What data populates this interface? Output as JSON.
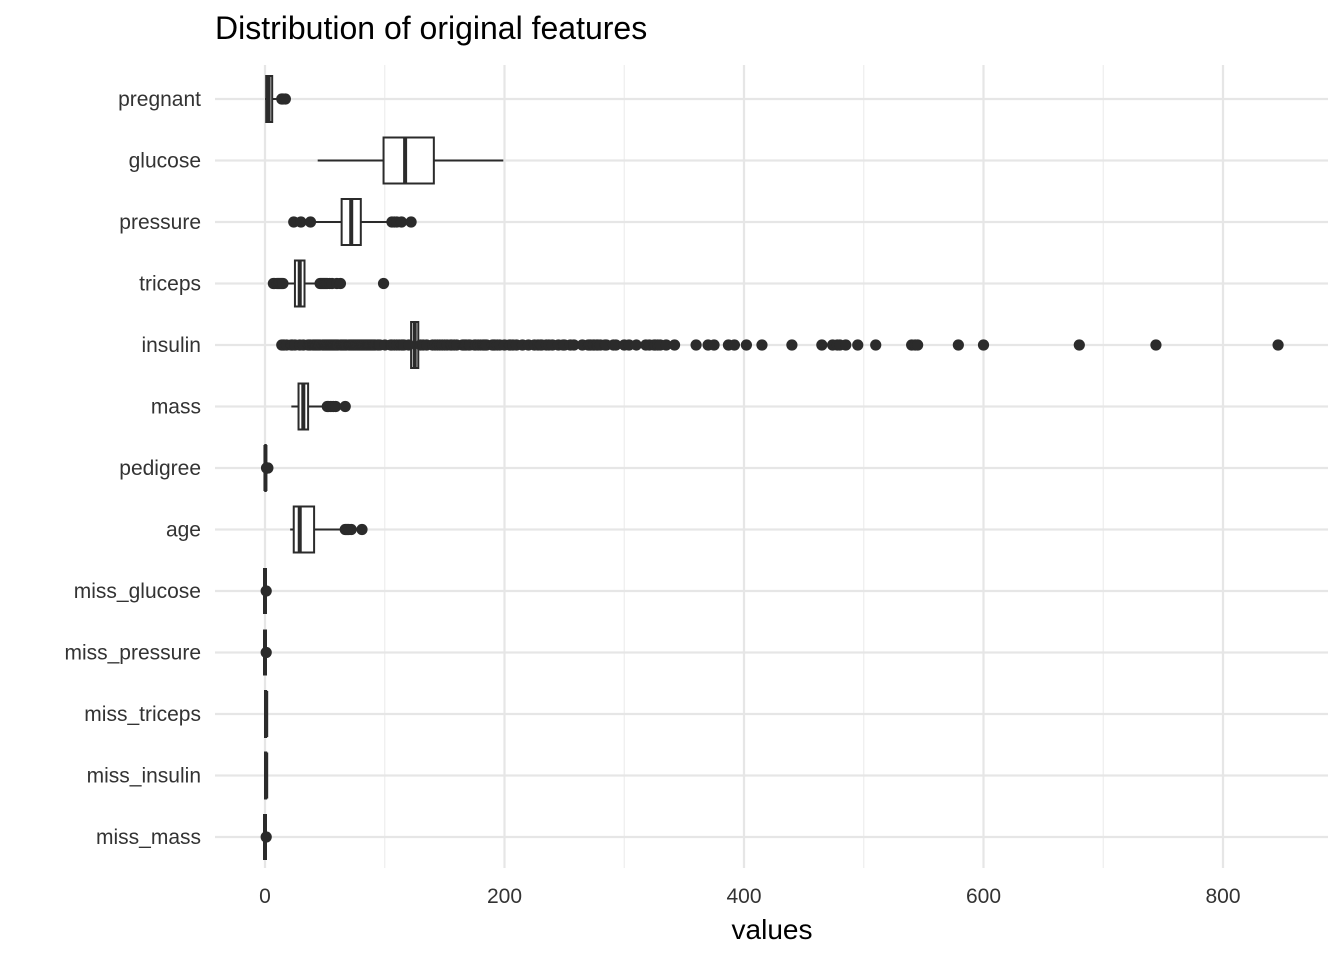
{
  "chart_data": {
    "type": "boxplot",
    "orientation": "horizontal",
    "title": "Distribution of original features",
    "xlabel": "values",
    "ylabel": "",
    "xlim": [
      -35,
      865
    ],
    "x_ticks": [
      0,
      200,
      400,
      600,
      800
    ],
    "x_minor_ticks": [
      100,
      300,
      500,
      700
    ],
    "grid": true,
    "legend": "none",
    "color": "#2b2b2b",
    "categories": [
      "pregnant",
      "glucose",
      "pressure",
      "triceps",
      "insulin",
      "mass",
      "pedigree",
      "age",
      "miss_glucose",
      "miss_pressure",
      "miss_triceps",
      "miss_insulin",
      "miss_mass"
    ],
    "boxes": [
      {
        "name": "pregnant",
        "min": 0,
        "q1": 1,
        "median": 3,
        "q3": 6,
        "max": 13,
        "outliers": [
          14,
          15,
          17
        ]
      },
      {
        "name": "glucose",
        "min": 44,
        "q1": 99,
        "median": 117,
        "q3": 141,
        "max": 199,
        "outliers": []
      },
      {
        "name": "pressure",
        "min": 40,
        "q1": 64,
        "median": 72,
        "q3": 80,
        "max": 104,
        "outliers": [
          24,
          30,
          38,
          106,
          108,
          110,
          114,
          122
        ]
      },
      {
        "name": "triceps",
        "min": 7,
        "q1": 25,
        "median": 29,
        "q3": 33,
        "max": 45,
        "outliers": [
          7,
          8,
          10,
          11,
          12,
          13,
          14,
          15,
          46,
          47,
          48,
          49,
          50,
          51,
          52,
          54,
          56,
          60,
          63,
          99
        ]
      },
      {
        "name": "insulin",
        "min": 105,
        "q1": 122,
        "median": 125,
        "q3": 128,
        "max": 145,
        "outliers": [
          14,
          15,
          16,
          18,
          22,
          23,
          25,
          29,
          32,
          36,
          37,
          38,
          40,
          41,
          42,
          43,
          44,
          45,
          46,
          48,
          49,
          50,
          51,
          52,
          53,
          54,
          55,
          56,
          57,
          58,
          59,
          60,
          61,
          63,
          64,
          65,
          66,
          67,
          68,
          70,
          71,
          72,
          73,
          74,
          75,
          76,
          77,
          78,
          79,
          80,
          81,
          82,
          83,
          84,
          85,
          86,
          87,
          88,
          89,
          90,
          91,
          92,
          94,
          95,
          96,
          100,
          105,
          106,
          108,
          110,
          112,
          114,
          115,
          116,
          120,
          130,
          132,
          135,
          140,
          142,
          144,
          146,
          148,
          150,
          152,
          155,
          156,
          158,
          160,
          165,
          166,
          167,
          168,
          170,
          171,
          175,
          176,
          178,
          180,
          182,
          183,
          184,
          185,
          190,
          191,
          192,
          194,
          196,
          200,
          204,
          205,
          207,
          210,
          215,
          220,
          225,
          228,
          230,
          231,
          235,
          237,
          240,
          245,
          249,
          250,
          255,
          258,
          265,
          270,
          271,
          272,
          274,
          275,
          277,
          278,
          280,
          284,
          285,
          291,
          293,
          300,
          304,
          310,
          318,
          321,
          325,
          326,
          328,
          330,
          335,
          342,
          360,
          370,
          375,
          387,
          392,
          402,
          415,
          440,
          465,
          474,
          478,
          480,
          485,
          495,
          510,
          540,
          543,
          545,
          579,
          600,
          680,
          744,
          846
        ]
      },
      {
        "name": "mass",
        "min": 22,
        "q1": 28,
        "median": 32,
        "q3": 36,
        "max": 50,
        "outliers": [
          52,
          53,
          55,
          57,
          59,
          67
        ]
      },
      {
        "name": "pedigree",
        "min": 0.08,
        "q1": 0.24,
        "median": 0.37,
        "q3": 0.63,
        "max": 1.2,
        "outliers": [
          1.3,
          1.5,
          1.8,
          2.1,
          2.4
        ]
      },
      {
        "name": "age",
        "min": 21,
        "q1": 24,
        "median": 29,
        "q3": 41,
        "max": 66,
        "outliers": [
          67,
          68,
          69,
          70,
          72,
          81
        ]
      },
      {
        "name": "miss_glucose",
        "min": 0,
        "q1": 0,
        "median": 0,
        "q3": 0,
        "max": 0,
        "outliers": [
          1
        ]
      },
      {
        "name": "miss_pressure",
        "min": 0,
        "q1": 0,
        "median": 0,
        "q3": 0,
        "max": 0,
        "outliers": [
          1
        ]
      },
      {
        "name": "miss_triceps",
        "min": 0,
        "q1": 0,
        "median": 1,
        "q3": 1,
        "max": 1,
        "outliers": []
      },
      {
        "name": "miss_insulin",
        "min": 0,
        "q1": 0,
        "median": 1,
        "q3": 1,
        "max": 1,
        "outliers": []
      },
      {
        "name": "miss_mass",
        "min": 0,
        "q1": 0,
        "median": 0,
        "q3": 0,
        "max": 0,
        "outliers": [
          1
        ]
      }
    ]
  }
}
